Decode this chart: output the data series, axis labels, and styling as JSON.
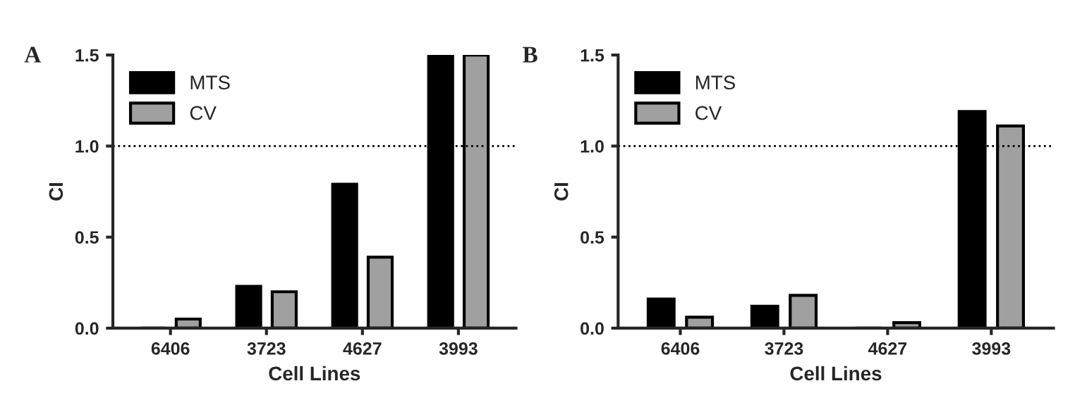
{
  "chart_data": [
    {
      "type": "bar",
      "title": "A",
      "xlabel": "Cell Lines",
      "ylabel": "CI",
      "categories": [
        "6406",
        "3723",
        "4627",
        "3993"
      ],
      "series": [
        {
          "name": "MTS",
          "color": "#000000",
          "values": [
            0,
            0.23,
            0.79,
            1.5
          ]
        },
        {
          "name": "CV",
          "color": "#a0a0a0",
          "values": [
            0.05,
            0.2,
            0.39,
            1.5
          ]
        }
      ],
      "ylim": [
        0,
        1.5
      ],
      "yticks": [
        {
          "value": 0,
          "label": "0.0"
        },
        {
          "value": 0.5,
          "label": "0.5"
        },
        {
          "value": 1,
          "label": "1.0"
        },
        {
          "value": 1.5,
          "label": "1.5"
        }
      ],
      "ref_lines": [
        {
          "axis": "y",
          "value": 1,
          "line_style": "dotted",
          "color": "#000000"
        }
      ],
      "legend": "top left",
      "grid": false
    },
    {
      "type": "bar",
      "title": "B",
      "xlabel": "Cell Lines",
      "ylabel": "CI",
      "categories": [
        "6406",
        "3723",
        "4627",
        "3993"
      ],
      "series": [
        {
          "name": "MTS",
          "color": "#000000",
          "values": [
            0.16,
            0.12,
            0,
            1.19
          ]
        },
        {
          "name": "CV",
          "color": "#a0a0a0",
          "values": [
            0.06,
            0.18,
            0.03,
            1.11
          ]
        }
      ],
      "ylim": [
        0,
        1.5
      ],
      "yticks": [
        {
          "value": 0,
          "label": "0.0"
        },
        {
          "value": 0.5,
          "label": "0.5"
        },
        {
          "value": 1,
          "label": "1.0"
        },
        {
          "value": 1.5,
          "label": "1.5"
        }
      ],
      "ref_lines": [
        {
          "axis": "y",
          "value": 1,
          "line_style": "dotted",
          "color": "#000000"
        }
      ],
      "legend": "top left",
      "grid": false
    }
  ]
}
